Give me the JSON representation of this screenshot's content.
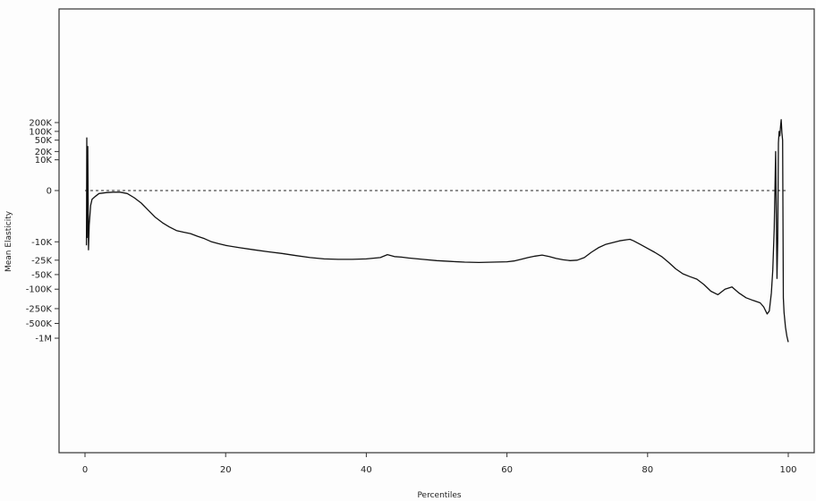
{
  "chart_data": {
    "type": "line",
    "title": "",
    "xlabel": "Percentiles",
    "ylabel": "Mean Elasticity",
    "xlim": [
      0,
      100
    ],
    "y_scale": "symmetric-log",
    "grid": false,
    "legend": "none",
    "x_ticks": [
      {
        "value": 0,
        "label": "0"
      },
      {
        "value": 20,
        "label": "20"
      },
      {
        "value": 40,
        "label": "40"
      },
      {
        "value": 60,
        "label": "60"
      },
      {
        "value": 80,
        "label": "80"
      },
      {
        "value": 100,
        "label": "100"
      }
    ],
    "y_ticks": [
      {
        "value": 200000,
        "label": "200K"
      },
      {
        "value": 100000,
        "label": "100K"
      },
      {
        "value": 50000,
        "label": "50K"
      },
      {
        "value": 20000,
        "label": "20K"
      },
      {
        "value": 10000,
        "label": "10K"
      },
      {
        "value": 0,
        "label": "0"
      },
      {
        "value": -10000,
        "label": "-10K"
      },
      {
        "value": -25000,
        "label": "-25K"
      },
      {
        "value": -50000,
        "label": "-50K"
      },
      {
        "value": -100000,
        "label": "-100K"
      },
      {
        "value": -250000,
        "label": "-250K"
      },
      {
        "value": -500000,
        "label": "-500K"
      },
      {
        "value": -1000000,
        "label": "-1M"
      }
    ],
    "reference_line": {
      "y": 0,
      "style": "dashed"
    },
    "series": [
      {
        "x": [
          0.2,
          0.25,
          0.3,
          0.35,
          0.4,
          0.5,
          0.6,
          0.8,
          1,
          1.5,
          2,
          3,
          4,
          5,
          6,
          7,
          8,
          9,
          10,
          11,
          12,
          13,
          14,
          15,
          16,
          17,
          18,
          19,
          20,
          22,
          24,
          26,
          28,
          30,
          32,
          34,
          36,
          38,
          40,
          42,
          43,
          44,
          45,
          46,
          48,
          50,
          52,
          54,
          56,
          58,
          60,
          61,
          62,
          63,
          64,
          65,
          66,
          67,
          68,
          69,
          70,
          71,
          72,
          73,
          74,
          75,
          76,
          77,
          77.5,
          78,
          79,
          80,
          81,
          82,
          83,
          84,
          85,
          86,
          87,
          88,
          89,
          90,
          91,
          92,
          93,
          94,
          95,
          96,
          96.5,
          97,
          97.3,
          97.6,
          97.8,
          98,
          98.2,
          98.4,
          98.5,
          98.6,
          98.7,
          98.8,
          98.9,
          99,
          99.1,
          99.2,
          99.3,
          99.4,
          99.6,
          99.8,
          100
        ],
        "y": [
          -12000,
          60000,
          -8000,
          10000,
          30000,
          -15000,
          -4000,
          -1000,
          -500,
          -300,
          -150,
          -100,
          -80,
          -80,
          -150,
          -400,
          -800,
          -1500,
          -2500,
          -3500,
          -4500,
          -5500,
          -6000,
          -6500,
          -7500,
          -8500,
          -10000,
          -11000,
          -12000,
          -13500,
          -15000,
          -16500,
          -18000,
          -20000,
          -22000,
          -23500,
          -24000,
          -24000,
          -23500,
          -22000,
          -19000,
          -21000,
          -21500,
          -22500,
          -24000,
          -25500,
          -26500,
          -27500,
          -28000,
          -27500,
          -27000,
          -26000,
          -24000,
          -22000,
          -20500,
          -19500,
          -21000,
          -23000,
          -24500,
          -25500,
          -25000,
          -22000,
          -17000,
          -13500,
          -11500,
          -10500,
          -9500,
          -9000,
          -8800,
          -9500,
          -11500,
          -14000,
          -17000,
          -21000,
          -28000,
          -38000,
          -48000,
          -55000,
          -62000,
          -80000,
          -110000,
          -130000,
          -100000,
          -90000,
          -120000,
          -150000,
          -170000,
          -190000,
          -230000,
          -320000,
          -280000,
          -120000,
          -40000,
          -5000,
          20000,
          -60000,
          -10000,
          40000,
          100000,
          70000,
          150000,
          250000,
          90000,
          50000,
          -150000,
          -300000,
          -600000,
          -900000,
          -1200000
        ]
      }
    ]
  }
}
